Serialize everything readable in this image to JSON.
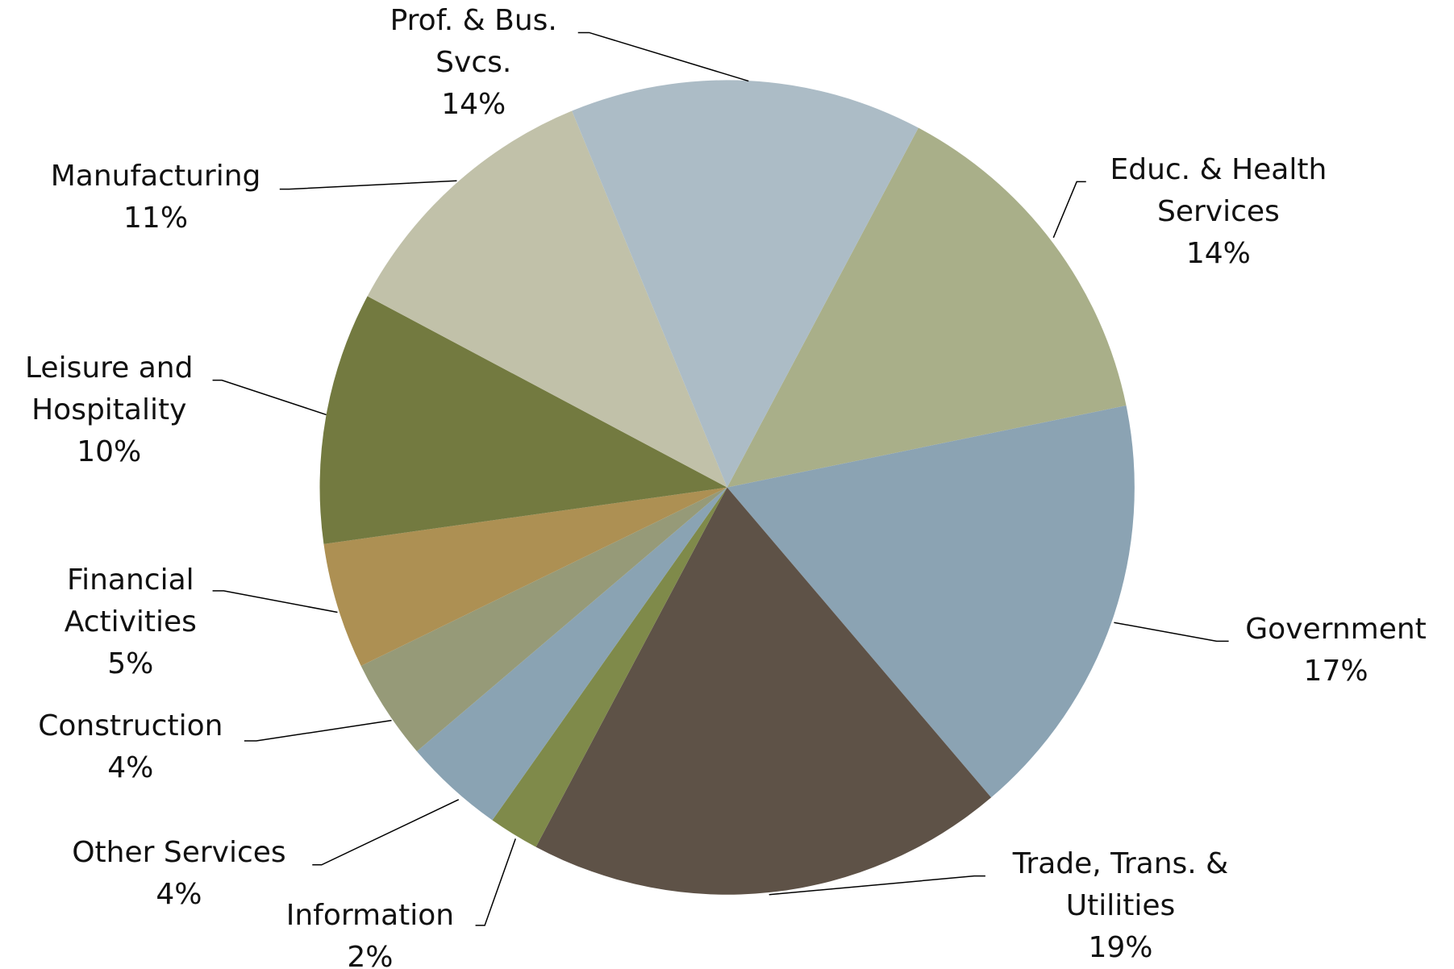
{
  "chart_data": {
    "type": "pie",
    "categories": [
      "Educ. & Health Services",
      "Government",
      "Trade, Trans. & Utilities",
      "Information",
      "Other Services",
      "Construction",
      "Financial Activities",
      "Leisure and Hospitality",
      "Manufacturing",
      "Prof. & Bus. Svcs."
    ],
    "values": [
      14,
      17,
      19,
      2,
      4,
      4,
      5,
      10,
      11,
      14
    ],
    "value_labels": [
      "14%",
      "17%",
      "19%",
      "2%",
      "4%",
      "4%",
      "5%",
      "10%",
      "11%",
      "14%"
    ],
    "colors": [
      "#a9af89",
      "#8ba3b3",
      "#5e5247",
      "#7f8a4a",
      "#8aa3b3",
      "#969a78",
      "#ad9053",
      "#737a40",
      "#c1c1a9",
      "#acbcc6"
    ]
  }
}
